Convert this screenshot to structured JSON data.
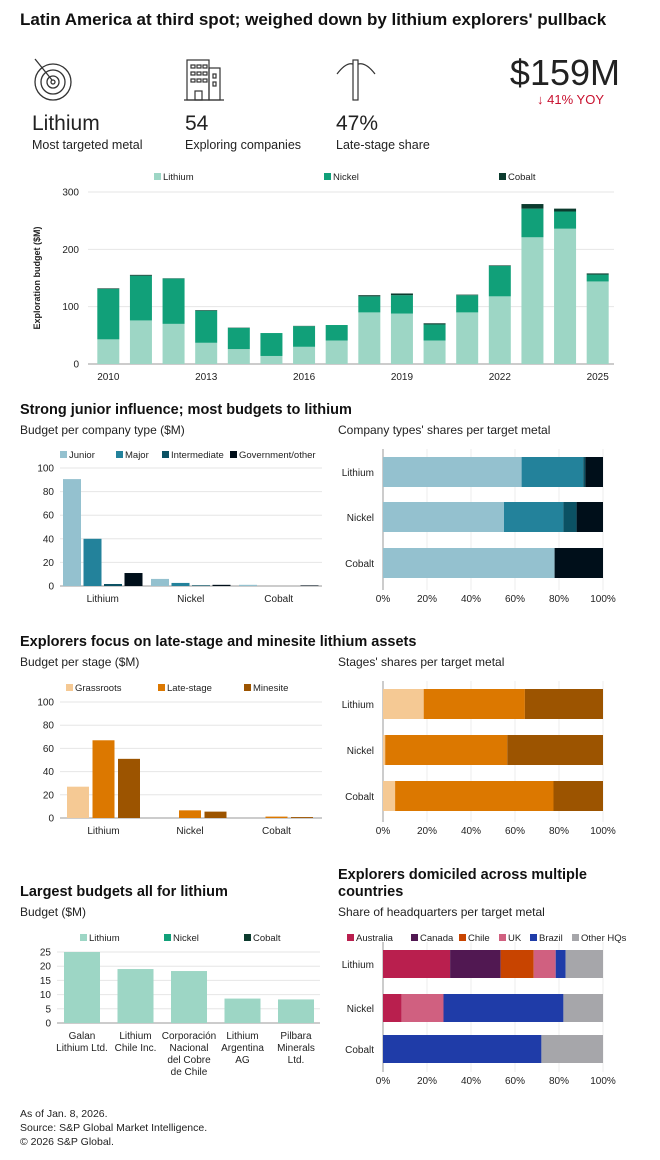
{
  "title": "Latin America at third spot; weighed down by lithium explorers' pullback",
  "kpis": [
    {
      "icon": "target-icon",
      "value": "Lithium",
      "label": "Most targeted metal"
    },
    {
      "icon": "building-icon",
      "value": "54",
      "label": "Exploring companies"
    },
    {
      "icon": "pickaxe-icon",
      "value": "47%",
      "label": "Late-stage share"
    }
  ],
  "headline": {
    "value": "$159M",
    "change": "↓ 41% YOY",
    "change_color": "#c8102e"
  },
  "sections": {
    "s2_title": "Strong junior influence; most budgets to lithium",
    "s2_left_sub": "Budget per company type ($M)",
    "s2_right_sub": "Company types' shares per target metal",
    "s3_title": "Explorers focus on late-stage and minesite lithium assets",
    "s3_left_sub": "Budget per stage ($M)",
    "s3_right_sub": "Stages' shares per target metal",
    "s4_left_title": "Largest budgets all for lithium",
    "s4_left_sub": "Budget ($M)",
    "s4_right_title_1": "Explorers domiciled across multiple",
    "s4_right_title_2": "countries",
    "s4_right_sub": "Share of headquarters per target metal"
  },
  "footer": [
    "As of Jan. 8, 2026.",
    "Source: S&P Global Market Intelligence.",
    "© 2026 S&P Global."
  ],
  "chart_data": [
    {
      "id": "annual",
      "type": "bar",
      "stacked": true,
      "ylabel": "Exploration budget ($M)",
      "ylim": [
        0,
        300
      ],
      "yticks": [
        0,
        100,
        200,
        300
      ],
      "categories": [
        "2010",
        "2011",
        "2012",
        "2013",
        "2014",
        "2015",
        "2016",
        "2017",
        "2018",
        "2019",
        "2020",
        "2021",
        "2022",
        "2023",
        "2024",
        "2025"
      ],
      "xtick_labels": [
        "2010",
        "2013",
        "2016",
        "2019",
        "2022",
        "2025"
      ],
      "legend": "top",
      "grid": true,
      "series": [
        {
          "name": "Lithium",
          "color": "#9dd6c5",
          "values": [
            43,
            76,
            70,
            37,
            26,
            14,
            30,
            41,
            90,
            88,
            41,
            90,
            118,
            221,
            236,
            144
          ]
        },
        {
          "name": "Nickel",
          "color": "#11a079",
          "values": [
            88,
            78,
            79,
            56,
            37,
            40,
            36,
            27,
            28,
            32,
            28,
            30,
            53,
            50,
            30,
            12
          ]
        },
        {
          "name": "Cobalt",
          "color": "#0c3b2e",
          "values": [
            1,
            1.5,
            0.5,
            1,
            0.5,
            0,
            0.5,
            0,
            2,
            3,
            2,
            1,
            1,
            8,
            5,
            2
          ]
        }
      ]
    },
    {
      "id": "company_type",
      "type": "bar",
      "stacked": false,
      "ylim": [
        0,
        100
      ],
      "yticks": [
        0,
        20,
        40,
        60,
        80,
        100
      ],
      "categories": [
        "Lithium",
        "Nickel",
        "Cobalt"
      ],
      "legend": "top",
      "grid": true,
      "series": [
        {
          "name": "Junior",
          "color": "#94c1cf",
          "values": [
            90.6,
            6,
            1
          ]
        },
        {
          "name": "Major",
          "color": "#23829b",
          "values": [
            40,
            2.6,
            0
          ]
        },
        {
          "name": "Intermediate",
          "color": "#0b5163",
          "values": [
            1.7,
            0.6,
            0
          ]
        },
        {
          "name": "Government/other",
          "color": "#000f1a",
          "values": [
            11,
            1,
            0.5
          ]
        }
      ]
    },
    {
      "id": "company_share",
      "type": "bar",
      "orientation": "horizontal",
      "stacked": true,
      "percent": true,
      "categories": [
        "Lithium",
        "Nickel",
        "Cobalt"
      ],
      "xticks": [
        "0%",
        "20%",
        "40%",
        "60%",
        "80%",
        "100%"
      ],
      "series": [
        {
          "name": "Junior",
          "color": "#94c1cf",
          "values": [
            63,
            55,
            78
          ]
        },
        {
          "name": "Major",
          "color": "#23829b",
          "values": [
            28,
            27,
            0
          ]
        },
        {
          "name": "Intermediate",
          "color": "#0b5163",
          "values": [
            1,
            6,
            0
          ]
        },
        {
          "name": "Government/other",
          "color": "#000f1a",
          "values": [
            8,
            12,
            22
          ]
        }
      ]
    },
    {
      "id": "stage",
      "type": "bar",
      "stacked": false,
      "ylim": [
        0,
        100
      ],
      "yticks": [
        0,
        20,
        40,
        60,
        80,
        100
      ],
      "categories": [
        "Lithium",
        "Nickel",
        "Cobalt"
      ],
      "legend": "top",
      "grid": true,
      "series": [
        {
          "name": "Grassroots",
          "color": "#f5c994",
          "values": [
            27,
            0,
            0
          ]
        },
        {
          "name": "Late-stage",
          "color": "#dc7800",
          "values": [
            67,
            6.6,
            1.2
          ]
        },
        {
          "name": "Minesite",
          "color": "#9c5400",
          "values": [
            51,
            5.5,
            0.8
          ]
        }
      ]
    },
    {
      "id": "stage_share",
      "type": "bar",
      "orientation": "horizontal",
      "stacked": true,
      "percent": true,
      "categories": [
        "Lithium",
        "Nickel",
        "Cobalt"
      ],
      "xticks": [
        "0%",
        "20%",
        "40%",
        "60%",
        "80%",
        "100%"
      ],
      "series": [
        {
          "name": "Grassroots",
          "color": "#f5c994",
          "values": [
            18.5,
            1,
            5.5
          ]
        },
        {
          "name": "Late-stage",
          "color": "#dc7800",
          "values": [
            46,
            55.5,
            72
          ]
        },
        {
          "name": "Minesite",
          "color": "#9c5400",
          "values": [
            35.5,
            43.5,
            22.5
          ]
        }
      ]
    },
    {
      "id": "top_budgets",
      "type": "bar",
      "stacked": false,
      "ylim": [
        0,
        25
      ],
      "yticks": [
        0,
        5,
        10,
        15,
        20,
        25
      ],
      "categories": [
        [
          "Galan",
          "Lithium Ltd."
        ],
        [
          "Lithium",
          "Chile Inc."
        ],
        [
          "Corporación",
          "Nacional",
          "del Cobre",
          "de Chile"
        ],
        [
          "Lithium",
          "Argentina",
          "AG"
        ],
        [
          "Pilbara",
          "Minerals",
          "Ltd."
        ]
      ],
      "legend": "top",
      "legend_items": [
        {
          "name": "Lithium",
          "color": "#9dd6c5"
        },
        {
          "name": "Nickel",
          "color": "#11a079"
        },
        {
          "name": "Cobalt",
          "color": "#0c3b2e"
        }
      ],
      "series": [
        {
          "name": "Lithium",
          "color": "#9dd6c5",
          "values": [
            25,
            19,
            18.3,
            8.6,
            8.3
          ]
        }
      ]
    },
    {
      "id": "hq_share",
      "type": "bar",
      "orientation": "horizontal",
      "stacked": true,
      "percent": true,
      "categories": [
        "Lithium",
        "Nickel",
        "Cobalt"
      ],
      "xticks": [
        "0%",
        "20%",
        "40%",
        "60%",
        "80%",
        "100%"
      ],
      "legend": "top",
      "series": [
        {
          "name": "Australia",
          "color": "#b91f4e",
          "values": [
            30.5,
            8.5,
            0
          ]
        },
        {
          "name": "Canada",
          "color": "#511852",
          "values": [
            23,
            0,
            0
          ]
        },
        {
          "name": "Chile",
          "color": "#c84400",
          "values": [
            15,
            0,
            0
          ]
        },
        {
          "name": "UK",
          "color": "#d06080",
          "values": [
            10,
            19,
            0
          ]
        },
        {
          "name": "Brazil",
          "color": "#1f3ca8",
          "values": [
            4.5,
            54.5,
            72
          ]
        },
        {
          "name": "Other HQs",
          "color": "#a6a6aa",
          "values": [
            17,
            18,
            28
          ]
        }
      ]
    }
  ]
}
